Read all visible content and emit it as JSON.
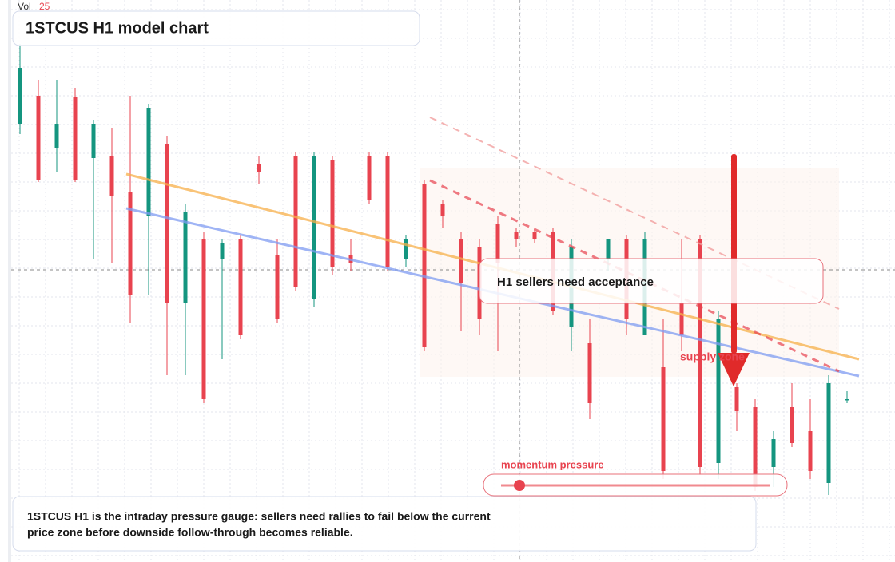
{
  "chart_data": {
    "type": "candlestick",
    "title": "1STCUS H1 model chart",
    "volume_label": "Vol",
    "volume_value": "25",
    "annotations": {
      "acceptance": "H1 sellers need acceptance",
      "supply": "supply zone",
      "momentum": "momentum pressure"
    },
    "caption": [
      "1STCUS H1 is the intraday pressure gauge: sellers need rallies to fail below the current",
      "price zone before downside follow-through becomes reliable."
    ],
    "ylim": [
      0,
      704
    ],
    "up_color": "#14957f",
    "down_color": "#e8434f",
    "grid": true,
    "series": {
      "open": [
        549,
        584,
        519,
        582,
        506,
        509,
        464,
        434,
        524,
        324,
        404,
        379,
        404,
        499,
        384,
        509,
        329,
        504,
        384,
        509,
        509,
        379,
        474,
        449,
        404,
        394,
        424,
        414,
        414,
        414,
        294,
        274,
        379,
        404,
        284,
        244,
        324,
        404,
        124,
        219,
        194,
        119,
        194,
        164,
        99,
        204
      ],
      "high": [
        649,
        604,
        604,
        594,
        554,
        544,
        584,
        574,
        534,
        449,
        414,
        404,
        409,
        509,
        404,
        514,
        514,
        509,
        404,
        514,
        514,
        409,
        479,
        454,
        414,
        404,
        434,
        419,
        419,
        419,
        404,
        304,
        404,
        409,
        414,
        304,
        404,
        409,
        314,
        224,
        204,
        164,
        224,
        204,
        234,
        214
      ],
      "low": [
        536,
        476,
        489,
        476,
        379,
        374,
        299,
        334,
        234,
        234,
        199,
        254,
        279,
        474,
        299,
        339,
        319,
        359,
        364,
        449,
        364,
        369,
        264,
        419,
        289,
        284,
        264,
        394,
        399,
        309,
        264,
        179,
        364,
        284,
        284,
        104,
        264,
        109,
        104,
        164,
        89,
        94,
        144,
        104,
        84,
        199
      ],
      "close": [
        619,
        479,
        549,
        479,
        549,
        459,
        334,
        569,
        324,
        439,
        204,
        399,
        284,
        489,
        304,
        344,
        509,
        369,
        374,
        454,
        369,
        404,
        269,
        434,
        349,
        304,
        374,
        404,
        404,
        314,
        394,
        199,
        404,
        304,
        404,
        114,
        284,
        119,
        304,
        189,
        94,
        154,
        149,
        114,
        224,
        204
      ]
    }
  }
}
